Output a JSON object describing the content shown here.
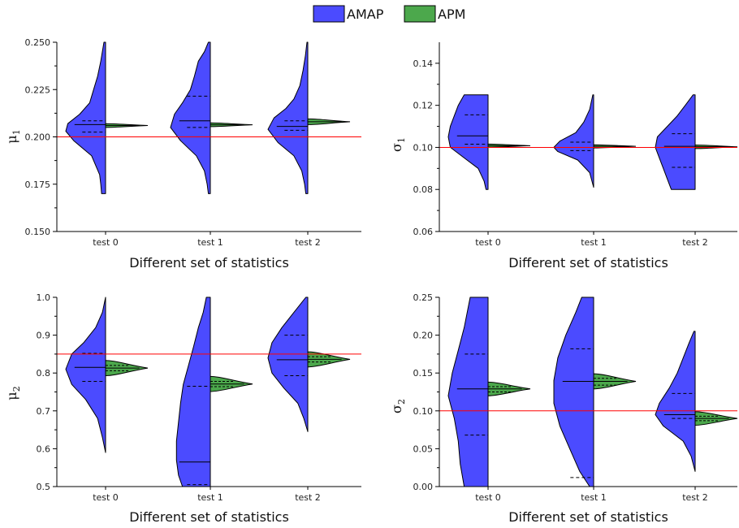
{
  "legend": {
    "entries": [
      {
        "label": "AMAP",
        "color": "#4b4bff"
      },
      {
        "label": "APM",
        "color": "#4ca84c"
      }
    ]
  },
  "chart_data": [
    {
      "type": "violin",
      "ylabel": "μ1",
      "ylabel_main": "μ",
      "ylabel_sub": "1",
      "xlabel": "Different set of statistics",
      "categories": [
        "test 0",
        "test 1",
        "test 2"
      ],
      "ylim": [
        0.15,
        0.25
      ],
      "yticks": [
        0.15,
        0.175,
        0.2,
        0.225,
        0.25
      ],
      "ytick_labels": [
        "0.150",
        "0.175",
        "0.200",
        "0.225",
        "0.250"
      ],
      "reference_line": 0.2,
      "series": [
        {
          "name": "AMAP",
          "violins": [
            {
              "min": 0.17,
              "max": 0.25,
              "median": 0.2065,
              "q1": 0.2025,
              "q3": 0.2085,
              "profile": [
                [
                  0.17,
                  0.1
                ],
                [
                  0.175,
                  0.12
                ],
                [
                  0.18,
                  0.15
                ],
                [
                  0.19,
                  0.35
                ],
                [
                  0.198,
                  0.8
                ],
                [
                  0.203,
                  1.0
                ],
                [
                  0.207,
                  0.95
                ],
                [
                  0.212,
                  0.65
                ],
                [
                  0.218,
                  0.4
                ],
                [
                  0.225,
                  0.3
                ],
                [
                  0.232,
                  0.2
                ],
                [
                  0.24,
                  0.12
                ],
                [
                  0.25,
                  0.04
                ]
              ]
            },
            {
              "min": 0.17,
              "max": 0.25,
              "median": 0.2085,
              "q1": 0.205,
              "q3": 0.2215,
              "profile": [
                [
                  0.17,
                  0.05
                ],
                [
                  0.175,
                  0.08
                ],
                [
                  0.182,
                  0.15
                ],
                [
                  0.19,
                  0.35
                ],
                [
                  0.198,
                  0.75
                ],
                [
                  0.205,
                  1.0
                ],
                [
                  0.212,
                  0.9
                ],
                [
                  0.218,
                  0.7
                ],
                [
                  0.225,
                  0.5
                ],
                [
                  0.232,
                  0.4
                ],
                [
                  0.24,
                  0.3
                ],
                [
                  0.245,
                  0.15
                ],
                [
                  0.25,
                  0.05
                ]
              ]
            },
            {
              "min": 0.17,
              "max": 0.25,
              "median": 0.2055,
              "q1": 0.2035,
              "q3": 0.2085,
              "profile": [
                [
                  0.17,
                  0.05
                ],
                [
                  0.175,
                  0.08
                ],
                [
                  0.182,
                  0.15
                ],
                [
                  0.19,
                  0.35
                ],
                [
                  0.197,
                  0.75
                ],
                [
                  0.204,
                  1.0
                ],
                [
                  0.21,
                  0.85
                ],
                [
                  0.215,
                  0.55
                ],
                [
                  0.22,
                  0.35
                ],
                [
                  0.227,
                  0.2
                ],
                [
                  0.235,
                  0.12
                ],
                [
                  0.243,
                  0.06
                ],
                [
                  0.25,
                  0.02
                ]
              ]
            }
          ]
        },
        {
          "name": "APM",
          "violins": [
            {
              "min": 0.205,
              "max": 0.207,
              "median": 0.206,
              "q1": 0.2056,
              "q3": 0.2064
            },
            {
              "min": 0.2054,
              "max": 0.2074,
              "median": 0.2064,
              "q1": 0.206,
              "q3": 0.2068
            },
            {
              "min": 0.2065,
              "max": 0.2095,
              "median": 0.208,
              "q1": 0.2074,
              "q3": 0.2086
            }
          ]
        }
      ]
    },
    {
      "type": "violin",
      "ylabel": "σ1",
      "ylabel_main": "σ",
      "ylabel_sub": "1",
      "xlabel": "Different set of statistics",
      "categories": [
        "test 0",
        "test 1",
        "test 2"
      ],
      "ylim": [
        0.06,
        0.15
      ],
      "yticks": [
        0.06,
        0.08,
        0.1,
        0.12,
        0.14
      ],
      "ytick_labels": [
        "0.06",
        "0.08",
        "0.10",
        "0.12",
        "0.14"
      ],
      "reference_line": 0.1,
      "series": [
        {
          "name": "AMAP",
          "violins": [
            {
              "min": 0.08,
              "max": 0.125,
              "median": 0.1055,
              "q1": 0.1015,
              "q3": 0.1155,
              "profile": [
                [
                  0.08,
                  0.05
                ],
                [
                  0.084,
                  0.1
                ],
                [
                  0.09,
                  0.25
                ],
                [
                  0.095,
                  0.6
                ],
                [
                  0.1,
                  0.95
                ],
                [
                  0.105,
                  1.0
                ],
                [
                  0.11,
                  0.95
                ],
                [
                  0.115,
                  0.85
                ],
                [
                  0.12,
                  0.75
                ],
                [
                  0.125,
                  0.6
                ]
              ]
            },
            {
              "min": 0.081,
              "max": 0.125,
              "median": 0.1,
              "q1": 0.0985,
              "q3": 0.1025,
              "profile": [
                [
                  0.081,
                  0.0
                ],
                [
                  0.088,
                  0.1
                ],
                [
                  0.094,
                  0.4
                ],
                [
                  0.098,
                  0.9
                ],
                [
                  0.1,
                  1.0
                ],
                [
                  0.103,
                  0.85
                ],
                [
                  0.107,
                  0.45
                ],
                [
                  0.112,
                  0.25
                ],
                [
                  0.118,
                  0.1
                ],
                [
                  0.125,
                  0.02
                ]
              ]
            },
            {
              "min": 0.08,
              "max": 0.125,
              "median": 0.1005,
              "q1": 0.0905,
              "q3": 0.1065,
              "profile": [
                [
                  0.08,
                  0.6
                ],
                [
                  0.085,
                  0.7
                ],
                [
                  0.09,
                  0.8
                ],
                [
                  0.095,
                  0.9
                ],
                [
                  0.1,
                  1.0
                ],
                [
                  0.105,
                  0.95
                ],
                [
                  0.11,
                  0.7
                ],
                [
                  0.115,
                  0.45
                ],
                [
                  0.12,
                  0.25
                ],
                [
                  0.125,
                  0.05
                ]
              ]
            }
          ]
        },
        {
          "name": "APM",
          "violins": [
            {
              "min": 0.1,
              "max": 0.1015,
              "median": 0.1008,
              "q1": 0.1004,
              "q3": 0.1011
            },
            {
              "min": 0.0998,
              "max": 0.1013,
              "median": 0.1005,
              "q1": 0.1002,
              "q3": 0.1009
            },
            {
              "min": 0.0995,
              "max": 0.1012,
              "median": 0.1003,
              "q1": 0.0999,
              "q3": 0.1007
            }
          ]
        }
      ]
    },
    {
      "type": "violin",
      "ylabel": "μ2",
      "ylabel_main": "μ",
      "ylabel_sub": "2",
      "xlabel": "Different set of statistics",
      "categories": [
        "test 0",
        "test 1",
        "test 2"
      ],
      "ylim": [
        0.5,
        1.0
      ],
      "yticks": [
        0.5,
        0.6,
        0.7,
        0.8,
        0.9,
        1.0
      ],
      "ytick_labels": [
        "0.5",
        "0.6",
        "0.7",
        "0.8",
        "0.9",
        "1.0"
      ],
      "reference_line": 0.85,
      "series": [
        {
          "name": "AMAP",
          "violins": [
            {
              "min": 0.59,
              "max": 1.0,
              "median": 0.815,
              "q1": 0.778,
              "q3": 0.852,
              "profile": [
                [
                  0.59,
                  0.0
                ],
                [
                  0.63,
                  0.08
                ],
                [
                  0.68,
                  0.2
                ],
                [
                  0.73,
                  0.5
                ],
                [
                  0.77,
                  0.85
                ],
                [
                  0.81,
                  1.0
                ],
                [
                  0.85,
                  0.85
                ],
                [
                  0.88,
                  0.55
                ],
                [
                  0.92,
                  0.25
                ],
                [
                  0.96,
                  0.08
                ],
                [
                  1.0,
                  0.0
                ]
              ]
            },
            {
              "min": 0.5,
              "max": 1.0,
              "median": 0.565,
              "q1": 0.505,
              "q3": 0.765,
              "profile": [
                [
                  0.5,
                  0.7
                ],
                [
                  0.53,
                  0.8
                ],
                [
                  0.57,
                  0.85
                ],
                [
                  0.62,
                  0.85
                ],
                [
                  0.67,
                  0.8
                ],
                [
                  0.72,
                  0.75
                ],
                [
                  0.77,
                  0.68
                ],
                [
                  0.82,
                  0.55
                ],
                [
                  0.87,
                  0.42
                ],
                [
                  0.92,
                  0.3
                ],
                [
                  0.96,
                  0.18
                ],
                [
                  1.0,
                  0.1
                ]
              ]
            },
            {
              "min": 0.645,
              "max": 1.0,
              "median": 0.835,
              "q1": 0.793,
              "q3": 0.9,
              "profile": [
                [
                  0.645,
                  0.0
                ],
                [
                  0.68,
                  0.1
                ],
                [
                  0.72,
                  0.25
                ],
                [
                  0.76,
                  0.6
                ],
                [
                  0.8,
                  0.9
                ],
                [
                  0.84,
                  1.0
                ],
                [
                  0.88,
                  0.9
                ],
                [
                  0.92,
                  0.65
                ],
                [
                  0.96,
                  0.35
                ],
                [
                  1.0,
                  0.05
                ]
              ]
            }
          ]
        },
        {
          "name": "APM",
          "violins": [
            {
              "min": 0.795,
              "max": 0.835,
              "median": 0.813,
              "q1": 0.806,
              "q3": 0.82
            },
            {
              "min": 0.75,
              "max": 0.79,
              "median": 0.771,
              "q1": 0.764,
              "q3": 0.778
            },
            {
              "min": 0.815,
              "max": 0.855,
              "median": 0.836,
              "q1": 0.829,
              "q3": 0.843
            }
          ]
        }
      ]
    },
    {
      "type": "violin",
      "ylabel": "σ2",
      "ylabel_main": "σ",
      "ylabel_sub": "2",
      "xlabel": "Different set of statistics",
      "categories": [
        "test 0",
        "test 1",
        "test 2"
      ],
      "ylim": [
        0.0,
        0.25
      ],
      "yticks": [
        0.0,
        0.05,
        0.1,
        0.15,
        0.2,
        0.25
      ],
      "ytick_labels": [
        "0.00",
        "0.05",
        "0.10",
        "0.15",
        "0.20",
        "0.25"
      ],
      "reference_line": 0.1,
      "series": [
        {
          "name": "AMAP",
          "violins": [
            {
              "min": 0.0,
              "max": 0.25,
              "median": 0.129,
              "q1": 0.068,
              "q3": 0.175,
              "profile": [
                [
                  0.0,
                  0.6
                ],
                [
                  0.03,
                  0.7
                ],
                [
                  0.06,
                  0.75
                ],
                [
                  0.09,
                  0.85
                ],
                [
                  0.12,
                  1.0
                ],
                [
                  0.15,
                  0.9
                ],
                [
                  0.18,
                  0.75
                ],
                [
                  0.21,
                  0.6
                ],
                [
                  0.25,
                  0.45
                ]
              ]
            },
            {
              "min": 0.0,
              "max": 0.25,
              "median": 0.139,
              "q1": 0.012,
              "q3": 0.182,
              "profile": [
                [
                  0.0,
                  0.1
                ],
                [
                  0.02,
                  0.35
                ],
                [
                  0.05,
                  0.6
                ],
                [
                  0.08,
                  0.85
                ],
                [
                  0.11,
                  1.0
                ],
                [
                  0.14,
                  1.0
                ],
                [
                  0.17,
                  0.9
                ],
                [
                  0.2,
                  0.7
                ],
                [
                  0.23,
                  0.45
                ],
                [
                  0.25,
                  0.3
                ]
              ]
            },
            {
              "min": 0.02,
              "max": 0.205,
              "median": 0.095,
              "q1": 0.09,
              "q3": 0.123,
              "profile": [
                [
                  0.02,
                  0.0
                ],
                [
                  0.04,
                  0.1
                ],
                [
                  0.06,
                  0.3
                ],
                [
                  0.08,
                  0.8
                ],
                [
                  0.095,
                  1.0
                ],
                [
                  0.11,
                  0.9
                ],
                [
                  0.13,
                  0.65
                ],
                [
                  0.15,
                  0.45
                ],
                [
                  0.17,
                  0.3
                ],
                [
                  0.19,
                  0.15
                ],
                [
                  0.205,
                  0.03
                ]
              ]
            }
          ]
        },
        {
          "name": "APM",
          "violins": [
            {
              "min": 0.12,
              "max": 0.138,
              "median": 0.129,
              "q1": 0.125,
              "q3": 0.132
            },
            {
              "min": 0.128,
              "max": 0.148,
              "median": 0.139,
              "q1": 0.134,
              "q3": 0.143
            },
            {
              "min": 0.081,
              "max": 0.099,
              "median": 0.09,
              "q1": 0.087,
              "q3": 0.093
            }
          ]
        }
      ]
    }
  ]
}
